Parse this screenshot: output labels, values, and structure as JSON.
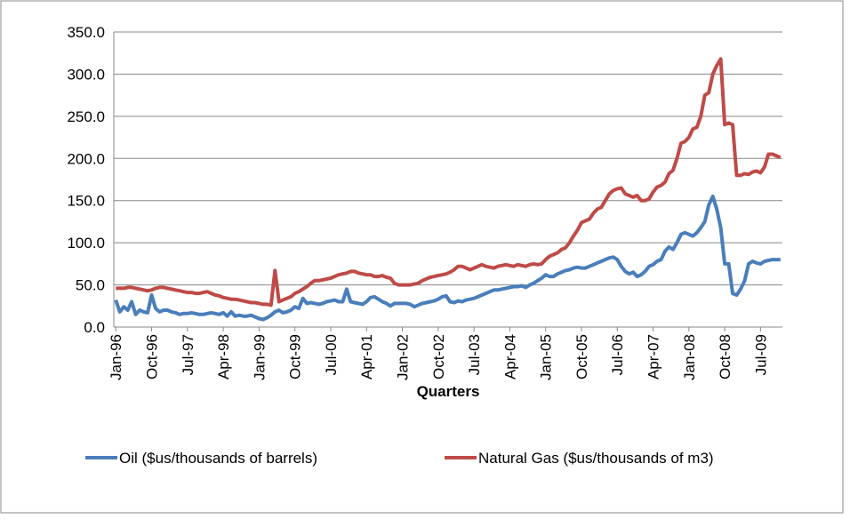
{
  "chart_data": {
    "type": "line",
    "x_label": "Quarters",
    "categories": [
      "Jan-96",
      null,
      null,
      null,
      null,
      null,
      null,
      null,
      null,
      "Oct-96",
      null,
      null,
      null,
      null,
      null,
      null,
      null,
      null,
      "Jul-97",
      null,
      null,
      null,
      null,
      null,
      null,
      null,
      null,
      "Apr-98",
      null,
      null,
      null,
      null,
      null,
      null,
      null,
      null,
      "Jan-99",
      null,
      null,
      null,
      null,
      null,
      null,
      null,
      null,
      "Oct-99",
      null,
      null,
      null,
      null,
      null,
      null,
      null,
      null,
      "Jul-00",
      null,
      null,
      null,
      null,
      null,
      null,
      null,
      null,
      "Apr-01",
      null,
      null,
      null,
      null,
      null,
      null,
      null,
      null,
      "Jan-02",
      null,
      null,
      null,
      null,
      null,
      null,
      null,
      null,
      "Oct-02",
      null,
      null,
      null,
      null,
      null,
      null,
      null,
      null,
      "Jul-03",
      null,
      null,
      null,
      null,
      null,
      null,
      null,
      null,
      "Apr-04",
      null,
      null,
      null,
      null,
      null,
      null,
      null,
      null,
      "Jan-05",
      null,
      null,
      null,
      null,
      null,
      null,
      null,
      null,
      "Oct-05",
      null,
      null,
      null,
      null,
      null,
      null,
      null,
      null,
      "Jul-06",
      null,
      null,
      null,
      null,
      null,
      null,
      null,
      null,
      "Apr-07",
      null,
      null,
      null,
      null,
      null,
      null,
      null,
      null,
      "Jan-08",
      null,
      null,
      null,
      null,
      null,
      null,
      null,
      null,
      "Oct-08",
      null,
      null,
      null,
      null,
      null,
      null,
      null,
      null,
      "Jul-09",
      null,
      null,
      null,
      null,
      null
    ],
    "series": [
      {
        "name": "Oil ($us/thousands of barrels)",
        "color": "#4a7ebb",
        "values": [
          32,
          18,
          24,
          20,
          30,
          15,
          20,
          18,
          17,
          38,
          22,
          18,
          20,
          20,
          18,
          17,
          15,
          16,
          16,
          17,
          16,
          15,
          15,
          16,
          17,
          16,
          15,
          17,
          13,
          18,
          13,
          14,
          13,
          13,
          14,
          12,
          10,
          9,
          11,
          14,
          18,
          20,
          17,
          18,
          20,
          24,
          22,
          34,
          28,
          29,
          28,
          27,
          28,
          30,
          31,
          32,
          30,
          30,
          45,
          30,
          29,
          28,
          27,
          30,
          35,
          36,
          33,
          30,
          28,
          25,
          28,
          28,
          28,
          28,
          27,
          24,
          26,
          28,
          29,
          30,
          31,
          33,
          36,
          37,
          30,
          29,
          31,
          30,
          32,
          33,
          34,
          36,
          38,
          40,
          42,
          44,
          44,
          45,
          46,
          47,
          48,
          48,
          49,
          47,
          50,
          52,
          55,
          58,
          62,
          60,
          60,
          63,
          65,
          67,
          68,
          70,
          71,
          70,
          70,
          72,
          74,
          76,
          78,
          80,
          82,
          83,
          80,
          72,
          66,
          63,
          65,
          60,
          62,
          66,
          72,
          74,
          78,
          80,
          90,
          95,
          92,
          100,
          110,
          112,
          110,
          108,
          112,
          118,
          125,
          145,
          155,
          140,
          118,
          75,
          75,
          40,
          38,
          45,
          55,
          75,
          78,
          76,
          75,
          78,
          79,
          80,
          80,
          80
        ]
      },
      {
        "name": "Natural Gas ($us/thousands of m3)",
        "color": "#be4b48",
        "values": [
          46,
          46,
          46,
          47,
          47,
          46,
          45,
          44,
          43,
          44,
          46,
          47,
          47,
          46,
          45,
          44,
          43,
          42,
          41,
          41,
          40,
          40,
          41,
          42,
          40,
          38,
          37,
          35,
          34,
          33,
          33,
          32,
          31,
          30,
          29,
          29,
          28,
          27,
          27,
          26,
          67,
          30,
          32,
          34,
          36,
          40,
          42,
          45,
          48,
          52,
          55,
          55,
          56,
          57,
          58,
          60,
          62,
          63,
          64,
          66,
          66,
          64,
          63,
          62,
          62,
          60,
          60,
          61,
          59,
          58,
          52,
          50,
          50,
          50,
          50,
          51,
          52,
          55,
          57,
          59,
          60,
          61,
          62,
          63,
          65,
          68,
          72,
          72,
          70,
          68,
          70,
          72,
          74,
          72,
          71,
          70,
          72,
          73,
          74,
          73,
          72,
          74,
          73,
          72,
          74,
          75,
          74,
          75,
          80,
          84,
          86,
          88,
          92,
          94,
          100,
          108,
          115,
          124,
          126,
          128,
          135,
          140,
          142,
          150,
          158,
          162,
          164,
          165,
          158,
          156,
          154,
          156,
          150,
          150,
          152,
          160,
          166,
          168,
          172,
          182,
          186,
          200,
          218,
          220,
          225,
          235,
          237,
          250,
          275,
          278,
          300,
          310,
          318,
          240,
          242,
          240,
          180,
          180,
          182,
          181,
          184,
          185,
          183,
          190,
          205,
          205,
          203,
          201
        ]
      }
    ],
    "ylim": [
      0,
      350
    ],
    "yticks": [
      {
        "value": 0,
        "label": "0.0"
      },
      {
        "value": 50,
        "label": "50.0"
      },
      {
        "value": 100,
        "label": "100.0"
      },
      {
        "value": 150,
        "label": "150.0"
      },
      {
        "value": 200,
        "label": "200.0"
      },
      {
        "value": 250,
        "label": "250.0"
      },
      {
        "value": 300,
        "label": "300.0"
      },
      {
        "value": 350,
        "label": "350.0"
      }
    ],
    "grid": true,
    "legend": "bottom"
  }
}
